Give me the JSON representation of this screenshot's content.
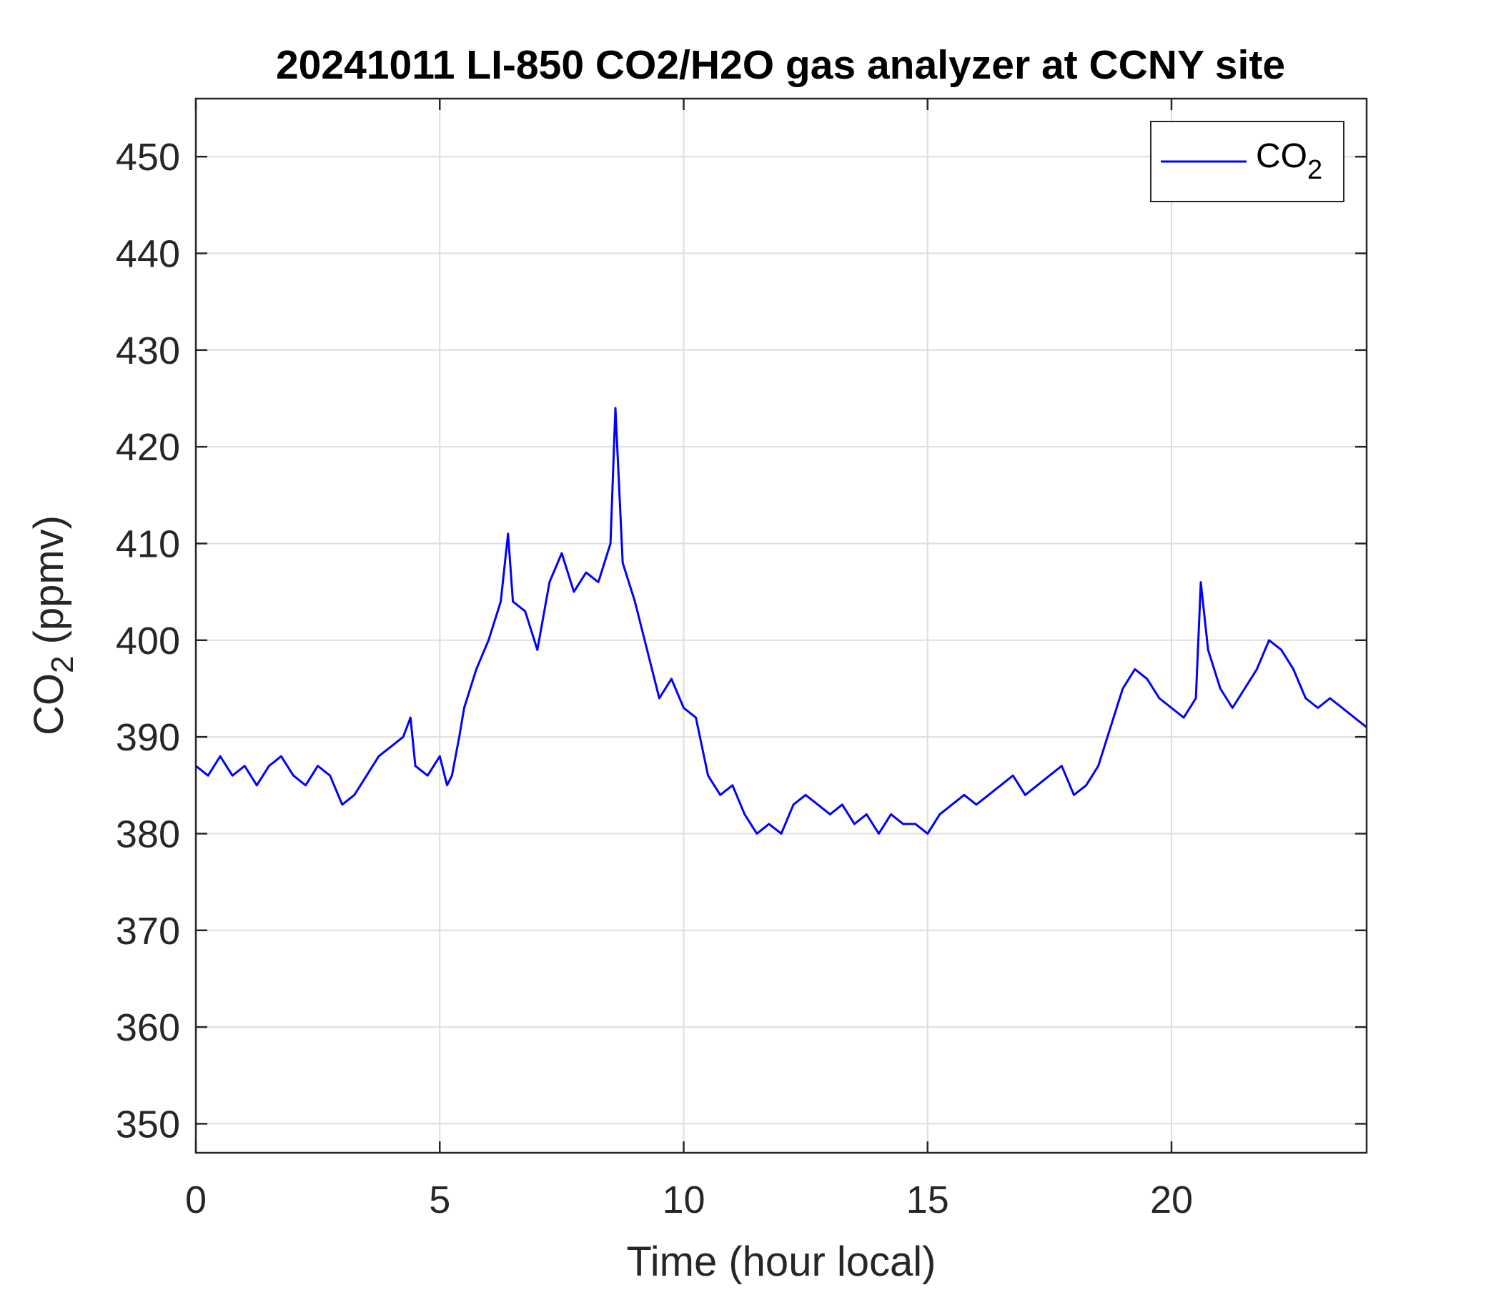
{
  "chart_data": {
    "type": "line",
    "title": "20241011 LI-850 CO2/H2O gas analyzer at CCNY site",
    "xlabel": "Time (hour local)",
    "ylabel": {
      "main": "CO",
      "sub": "2",
      "unit": "(ppmv)"
    },
    "xlim": [
      0,
      24
    ],
    "ylim": [
      347,
      456
    ],
    "xticks": [
      0,
      5,
      10,
      15,
      20
    ],
    "yticks": [
      350,
      360,
      370,
      380,
      390,
      400,
      410,
      420,
      430,
      440,
      450
    ],
    "grid": true,
    "legend": {
      "placement": "top-right",
      "main": "CO",
      "sub": "2"
    },
    "series": [
      {
        "name": "CO2",
        "color": "#0000ff",
        "x": [
          0,
          0.25,
          0.5,
          0.75,
          1,
          1.25,
          1.5,
          1.75,
          2,
          2.25,
          2.5,
          2.75,
          3,
          3.25,
          3.5,
          3.75,
          4,
          4.25,
          4.4,
          4.5,
          4.75,
          5,
          5.15,
          5.25,
          5.4,
          5.5,
          5.75,
          6,
          6.25,
          6.4,
          6.5,
          6.75,
          7,
          7.25,
          7.5,
          7.75,
          8,
          8.25,
          8.5,
          8.6,
          8.75,
          9,
          9.25,
          9.5,
          9.75,
          10,
          10.25,
          10.5,
          10.75,
          11,
          11.25,
          11.5,
          11.75,
          12,
          12.25,
          12.5,
          12.75,
          13,
          13.25,
          13.5,
          13.75,
          14,
          14.25,
          14.5,
          14.75,
          15,
          15.25,
          15.5,
          15.75,
          16,
          16.25,
          16.5,
          16.75,
          17,
          17.25,
          17.5,
          17.75,
          18,
          18.25,
          18.5,
          18.75,
          19,
          19.25,
          19.5,
          19.75,
          20,
          20.25,
          20.5,
          20.6,
          20.75,
          21,
          21.25,
          21.5,
          21.75,
          22,
          22.25,
          22.5,
          22.75,
          23,
          23.25,
          23.5,
          23.75,
          24
        ],
        "y": [
          387,
          386,
          388,
          386,
          387,
          385,
          387,
          388,
          386,
          385,
          387,
          386,
          383,
          384,
          386,
          388,
          389,
          390,
          392,
          387,
          386,
          388,
          385,
          386,
          390,
          393,
          397,
          400,
          404,
          411,
          404,
          403,
          399,
          406,
          409,
          405,
          407,
          406,
          410,
          424,
          408,
          404,
          399,
          394,
          396,
          393,
          392,
          386,
          384,
          385,
          382,
          380,
          381,
          380,
          383,
          384,
          383,
          382,
          383,
          381,
          382,
          380,
          382,
          381,
          381,
          380,
          382,
          383,
          384,
          383,
          384,
          385,
          386,
          384,
          385,
          386,
          387,
          384,
          385,
          387,
          391,
          395,
          397,
          396,
          394,
          393,
          392,
          394,
          406,
          399,
          395,
          393,
          395,
          397,
          400,
          399,
          397,
          394,
          393,
          394,
          393,
          392,
          391
        ]
      }
    ]
  }
}
